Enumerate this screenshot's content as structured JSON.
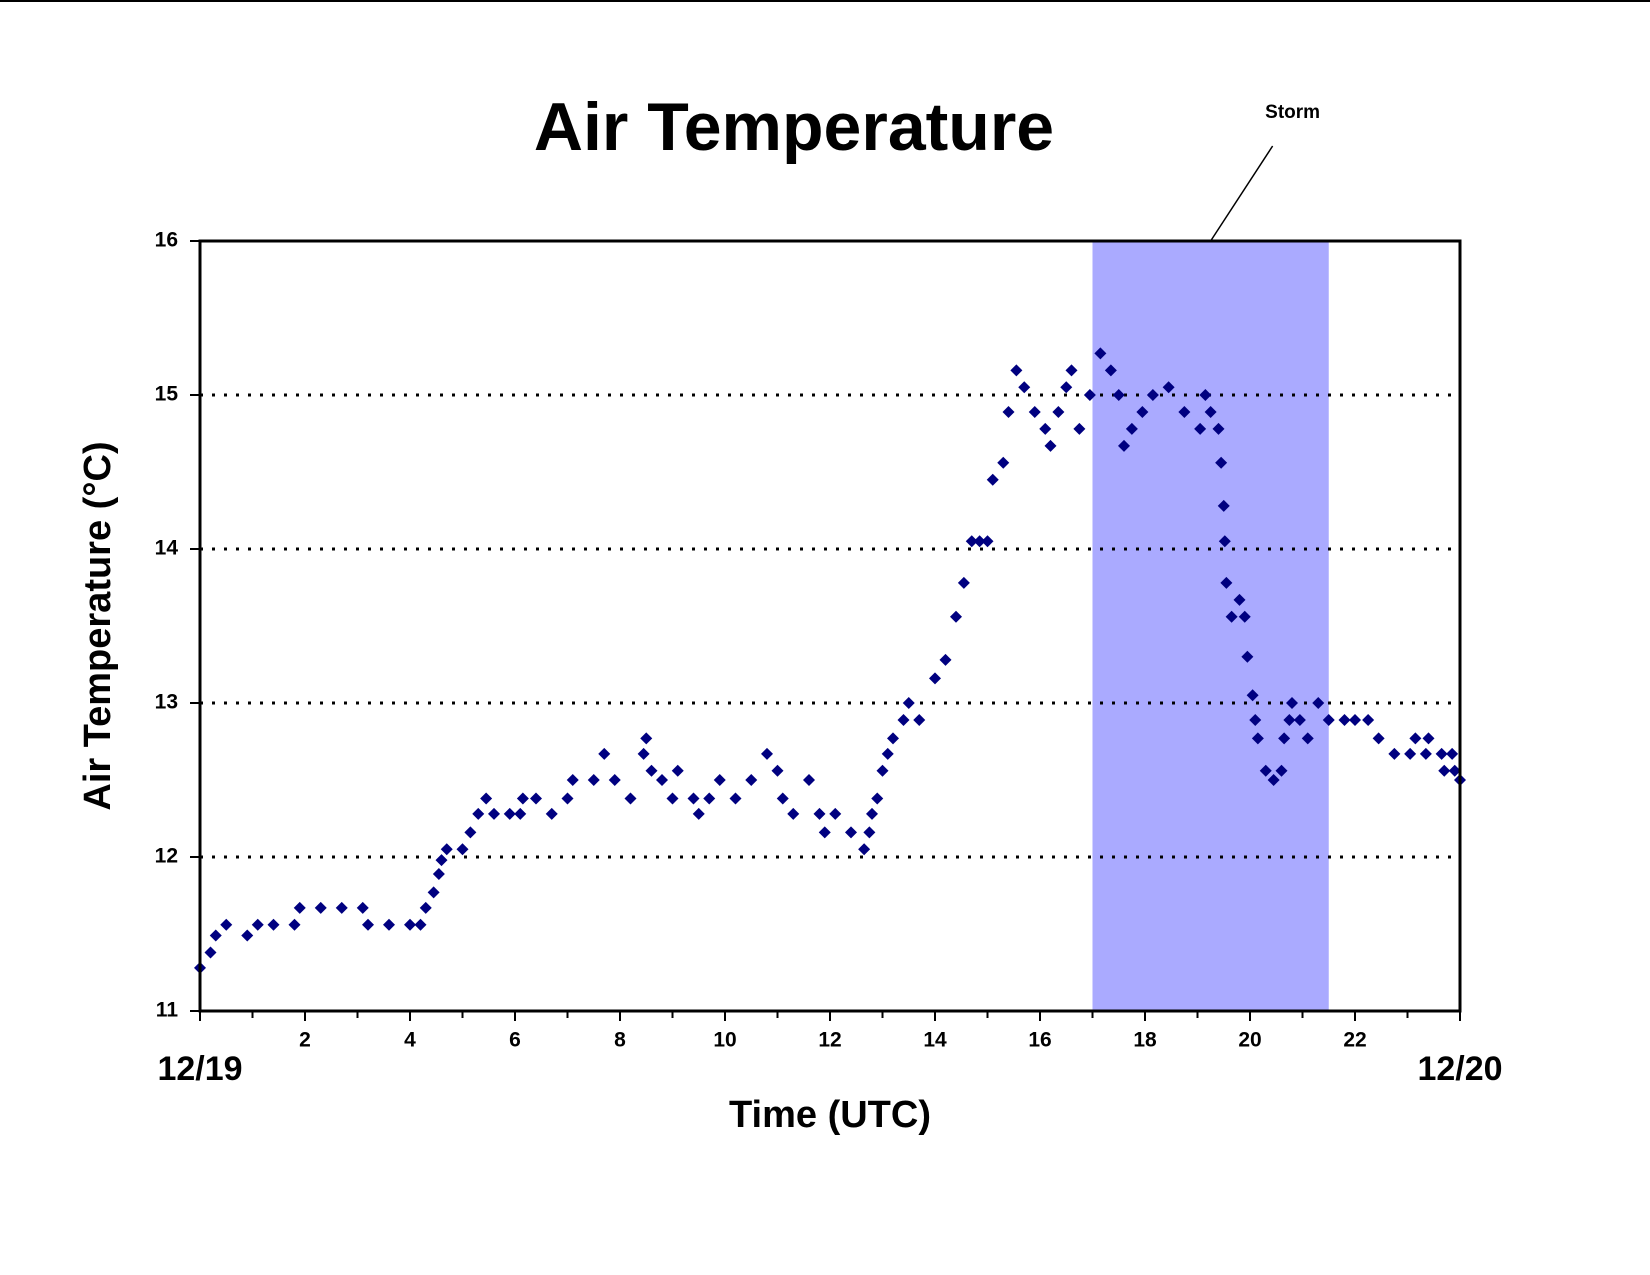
{
  "chart_data": {
    "type": "scatter",
    "title": "Air Temperature",
    "x_label": "Time (UTC)",
    "y_label": "Air Temperature (°C)",
    "color": "#000080",
    "x": [
      0,
      0.2,
      0.3,
      0.5,
      0.9,
      1.1,
      1.4,
      1.8,
      1.9,
      2.3,
      2.7,
      3.1,
      3.2,
      3.6,
      4.0,
      4.2,
      4.3,
      4.45,
      4.55,
      4.6,
      4.7,
      5.0,
      5.15,
      5.3,
      5.45,
      5.6,
      5.9,
      6.1,
      6.15,
      6.4,
      6.7,
      7.0,
      7.1,
      7.5,
      7.7,
      7.9,
      8.2,
      8.45,
      8.5,
      8.6,
      8.8,
      9.0,
      9.1,
      9.4,
      9.5,
      9.7,
      9.9,
      10.2,
      10.5,
      10.8,
      11.0,
      11.1,
      11.3,
      11.6,
      11.8,
      11.9,
      12.1,
      12.4,
      12.65,
      12.75,
      12.8,
      12.9,
      13.0,
      13.1,
      13.2,
      13.4,
      13.5,
      13.7,
      14.0,
      14.2,
      14.4,
      14.55,
      14.7,
      14.85,
      15.0,
      15.1,
      15.3,
      15.4,
      15.55,
      15.7,
      15.9,
      16.1,
      16.2,
      16.35,
      16.5,
      16.6,
      16.75,
      16.95,
      17.15,
      17.35,
      17.5,
      17.6,
      17.75,
      17.95,
      18.15,
      18.45,
      18.75,
      19.05,
      19.15,
      19.25,
      19.4,
      19.45,
      19.5,
      19.52,
      19.55,
      19.65,
      19.8,
      19.9,
      19.95,
      20.05,
      20.1,
      20.15,
      20.3,
      20.45,
      20.6,
      20.65,
      20.75,
      20.8,
      20.95,
      21.1,
      21.3,
      21.5,
      21.8,
      22.0,
      22.25,
      22.45,
      22.75,
      23.05,
      23.15,
      23.35,
      23.4,
      23.65,
      23.7,
      23.85,
      23.9,
      24.0
    ],
    "values": [
      11.28,
      11.38,
      11.49,
      11.56,
      11.49,
      11.56,
      11.56,
      11.56,
      11.67,
      11.67,
      11.67,
      11.67,
      11.56,
      11.56,
      11.56,
      11.56,
      11.67,
      11.77,
      11.89,
      11.98,
      12.05,
      12.05,
      12.16,
      12.28,
      12.38,
      12.28,
      12.28,
      12.28,
      12.38,
      12.38,
      12.28,
      12.38,
      12.5,
      12.5,
      12.67,
      12.5,
      12.38,
      12.67,
      12.77,
      12.56,
      12.5,
      12.38,
      12.56,
      12.38,
      12.28,
      12.38,
      12.5,
      12.38,
      12.5,
      12.67,
      12.56,
      12.38,
      12.28,
      12.5,
      12.28,
      12.16,
      12.28,
      12.16,
      12.05,
      12.16,
      12.28,
      12.38,
      12.56,
      12.67,
      12.77,
      12.89,
      13.0,
      12.89,
      13.16,
      13.28,
      13.56,
      13.78,
      14.05,
      14.05,
      14.05,
      14.45,
      14.56,
      14.89,
      15.16,
      15.05,
      14.89,
      14.78,
      14.67,
      14.89,
      15.05,
      15.16,
      14.78,
      15.0,
      15.27,
      15.16,
      15.0,
      14.67,
      14.78,
      14.89,
      15.0,
      15.05,
      14.89,
      14.78,
      15.0,
      14.89,
      14.78,
      14.56,
      14.28,
      14.05,
      13.78,
      13.56,
      13.67,
      13.56,
      13.3,
      13.05,
      12.89,
      12.77,
      12.56,
      12.5,
      12.56,
      12.77,
      12.89,
      13.0,
      12.89,
      12.77,
      13.0,
      12.89,
      12.89,
      12.89,
      12.89,
      12.77,
      12.67,
      12.67,
      12.77,
      12.67,
      12.77,
      12.67,
      12.56,
      12.67,
      12.56,
      12.5
    ],
    "xlim": [
      0,
      24
    ],
    "ylim": [
      11,
      16
    ],
    "xticks": [
      {
        "value": 0,
        "label": "12/19"
      },
      2,
      4,
      6,
      8,
      10,
      12,
      14,
      16,
      18,
      20,
      22,
      {
        "value": 24,
        "label": "12/20"
      }
    ],
    "xminorticks": [
      1,
      3,
      5,
      7,
      9,
      11,
      13,
      15,
      17,
      19,
      21,
      23
    ],
    "yticks": [
      11,
      12,
      13,
      14,
      15,
      16
    ],
    "grid": true,
    "shaded_region": {
      "x": [
        17,
        21.5
      ],
      "color": "#aaaaff",
      "label": "Storm"
    }
  }
}
